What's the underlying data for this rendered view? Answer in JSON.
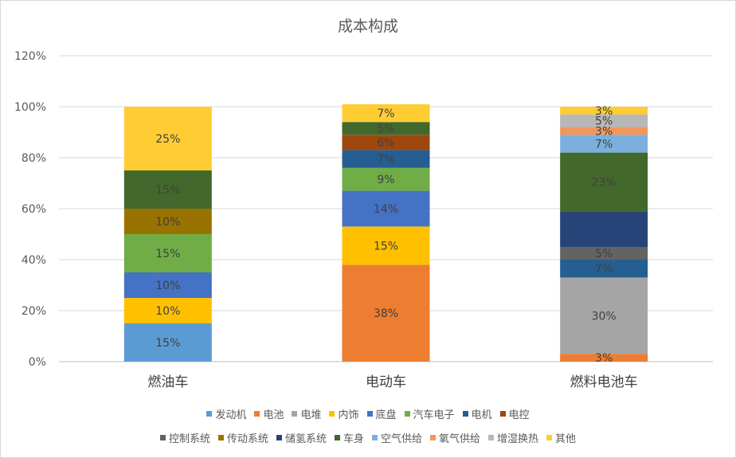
{
  "chart_data": {
    "type": "bar",
    "stacked": true,
    "title": "成本构成",
    "categories": [
      "燃油车",
      "电动车",
      "燃料电池车"
    ],
    "ylim": [
      0,
      120
    ],
    "yticks": [
      "0%",
      "20%",
      "40%",
      "60%",
      "80%",
      "100%",
      "120%"
    ],
    "grid": true,
    "legend_position": "bottom",
    "series": [
      {
        "name": "发动机",
        "color": "#5b9bd5",
        "values": [
          15,
          0,
          0
        ]
      },
      {
        "name": "电池",
        "color": "#ed7d31",
        "values": [
          0,
          38,
          3
        ]
      },
      {
        "name": "电堆",
        "color": "#a5a5a5",
        "values": [
          0,
          0,
          30
        ]
      },
      {
        "name": "内饰",
        "color": "#ffc000",
        "values": [
          10,
          15,
          0
        ]
      },
      {
        "name": "底盘",
        "color": "#4472c4",
        "values": [
          10,
          14,
          0
        ]
      },
      {
        "name": "汽车电子",
        "color": "#70ad47",
        "values": [
          15,
          9,
          0
        ]
      },
      {
        "name": "电机",
        "color": "#255e91",
        "values": [
          0,
          7,
          7
        ]
      },
      {
        "name": "电控",
        "color": "#9e480e",
        "values": [
          0,
          6,
          0
        ]
      },
      {
        "name": "控制系统",
        "color": "#636363",
        "values": [
          0,
          0,
          5
        ]
      },
      {
        "name": "传动系统",
        "color": "#997300",
        "values": [
          10,
          0,
          0
        ]
      },
      {
        "name": "储氢系统",
        "color": "#264478",
        "values": [
          0,
          0,
          14
        ]
      },
      {
        "name": "车身",
        "color": "#43682b",
        "values": [
          15,
          5,
          23
        ]
      },
      {
        "name": "空气供给",
        "color": "#7cafdd",
        "values": [
          0,
          0,
          7
        ]
      },
      {
        "name": "氧气供给",
        "color": "#f1975a",
        "values": [
          0,
          0,
          3
        ]
      },
      {
        "name": "增湿换热",
        "color": "#b7b7b7",
        "values": [
          0,
          0,
          5
        ]
      },
      {
        "name": "其他",
        "color": "#ffcd33",
        "values": [
          25,
          7,
          3
        ]
      }
    ],
    "data_labels": [
      [
        {
          "series": 0,
          "text": "15%"
        },
        {
          "series": 3,
          "text": "10%"
        },
        {
          "series": 4,
          "text": "10%"
        },
        {
          "series": 5,
          "text": "15%"
        },
        {
          "series": 9,
          "text": "10%"
        },
        {
          "series": 11,
          "text": "15%"
        },
        {
          "series": 15,
          "text": "25%"
        }
      ],
      [
        {
          "series": 1,
          "text": "38%"
        },
        {
          "series": 3,
          "text": "15%"
        },
        {
          "series": 4,
          "text": "14%"
        },
        {
          "series": 5,
          "text": "9%"
        },
        {
          "series": 6,
          "text": "7%"
        },
        {
          "series": 7,
          "text": "6%"
        },
        {
          "series": 11,
          "text": "5%"
        },
        {
          "series": 15,
          "text": "7%"
        }
      ],
      [
        {
          "series": 1,
          "text": "3%"
        },
        {
          "series": 2,
          "text": "30%"
        },
        {
          "series": 6,
          "text": "7%"
        },
        {
          "series": 8,
          "text": "5%"
        },
        {
          "series": 11,
          "text": "23%"
        },
        {
          "series": 12,
          "text": "7%"
        },
        {
          "series": 13,
          "text": "3%"
        },
        {
          "series": 14,
          "text": "5%"
        },
        {
          "series": 15,
          "text": "3%"
        }
      ]
    ],
    "legend_rows": [
      [
        "发动机",
        "电池",
        "电堆",
        "内饰",
        "底盘",
        "汽车电子",
        "电机",
        "电控"
      ],
      [
        "控制系统",
        "传动系统",
        "储氢系统",
        "车身",
        "空气供给",
        "氧气供给",
        "增湿换热",
        "其他"
      ]
    ]
  }
}
